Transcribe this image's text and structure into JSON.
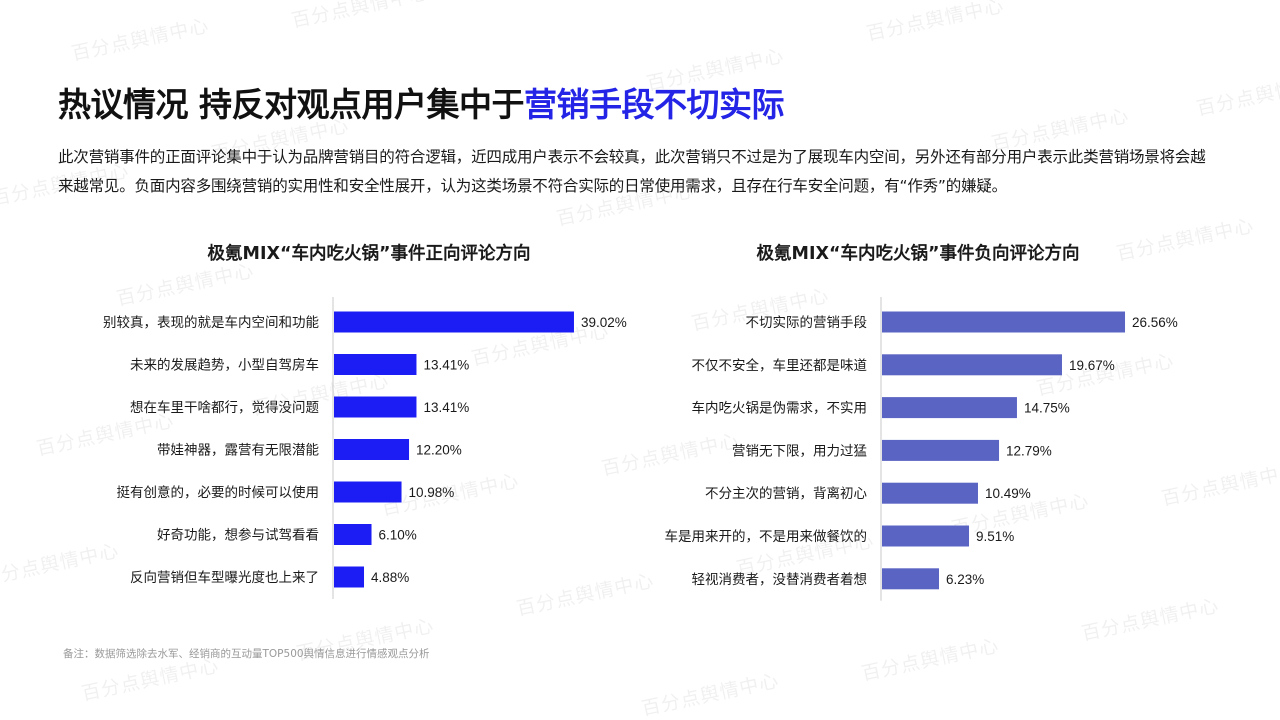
{
  "title": {
    "main": "热议情况  持反对观点用户集中于",
    "accent": "营销手段不切实际"
  },
  "description": "此次营销事件的正面评论集中于认为品牌营销目的符合逻辑，近四成用户表示不会较真，此次营销只不过是为了展现车内空间，另外还有部分用户表示此类营销场景将会越来越常见。负面内容多围绕营销的实用性和安全性展开，认为这类场景不符合实际的日常使用需求，且存在行车安全问题，有“作秀”的嫌疑。",
  "watermark": "百分点舆情中心",
  "footnote": "备注：数据筛选除去水军、经销商的互动量TOP500舆情信息进行情感观点分析",
  "colors": {
    "accent": "#2424e6",
    "positive_bar": "#1c1cf5",
    "negative_bar": "#5a64c3"
  },
  "chart_data": [
    {
      "type": "bar",
      "orientation": "horizontal",
      "title": "极氪MIX“车内吃火锅”事件正向评论方向",
      "categories": [
        "别较真，表现的就是车内空间和功能",
        "未来的发展趋势，小型自驾房车",
        "想在车里干啥都行，觉得没问题",
        "带娃神器，露营有无限潜能",
        "挺有创意的，必要的时候可以使用",
        "好奇功能，想参与试驾看看",
        "反向营销但车型曝光度也上来了"
      ],
      "values": [
        39.02,
        13.41,
        13.41,
        12.2,
        10.98,
        6.1,
        4.88
      ],
      "labels": [
        "39.02%",
        "13.41%",
        "13.41%",
        "12.20%",
        "10.98%",
        "6.10%",
        "4.88%"
      ],
      "unit": "%",
      "xlim": [
        0,
        40
      ],
      "grid": false,
      "color": "#1c1cf5"
    },
    {
      "type": "bar",
      "orientation": "horizontal",
      "title": "极氪MIX“车内吃火锅”事件负向评论方向",
      "categories": [
        "不切实际的营销手段",
        "不仅不安全，车里还都是味道",
        "车内吃火锅是伪需求，不实用",
        "营销无下限，用力过猛",
        "不分主次的营销，背离初心",
        "车是用来开的，不是用来做餐饮的",
        "轻视消费者，没替消费者着想"
      ],
      "values": [
        26.56,
        19.67,
        14.75,
        12.79,
        10.49,
        9.51,
        6.23
      ],
      "labels": [
        "26.56%",
        "19.67%",
        "14.75%",
        "12.79%",
        "10.49%",
        "9.51%",
        "6.23%"
      ],
      "unit": "%",
      "xlim": [
        0,
        30
      ],
      "grid": false,
      "color": "#5a64c3"
    }
  ]
}
